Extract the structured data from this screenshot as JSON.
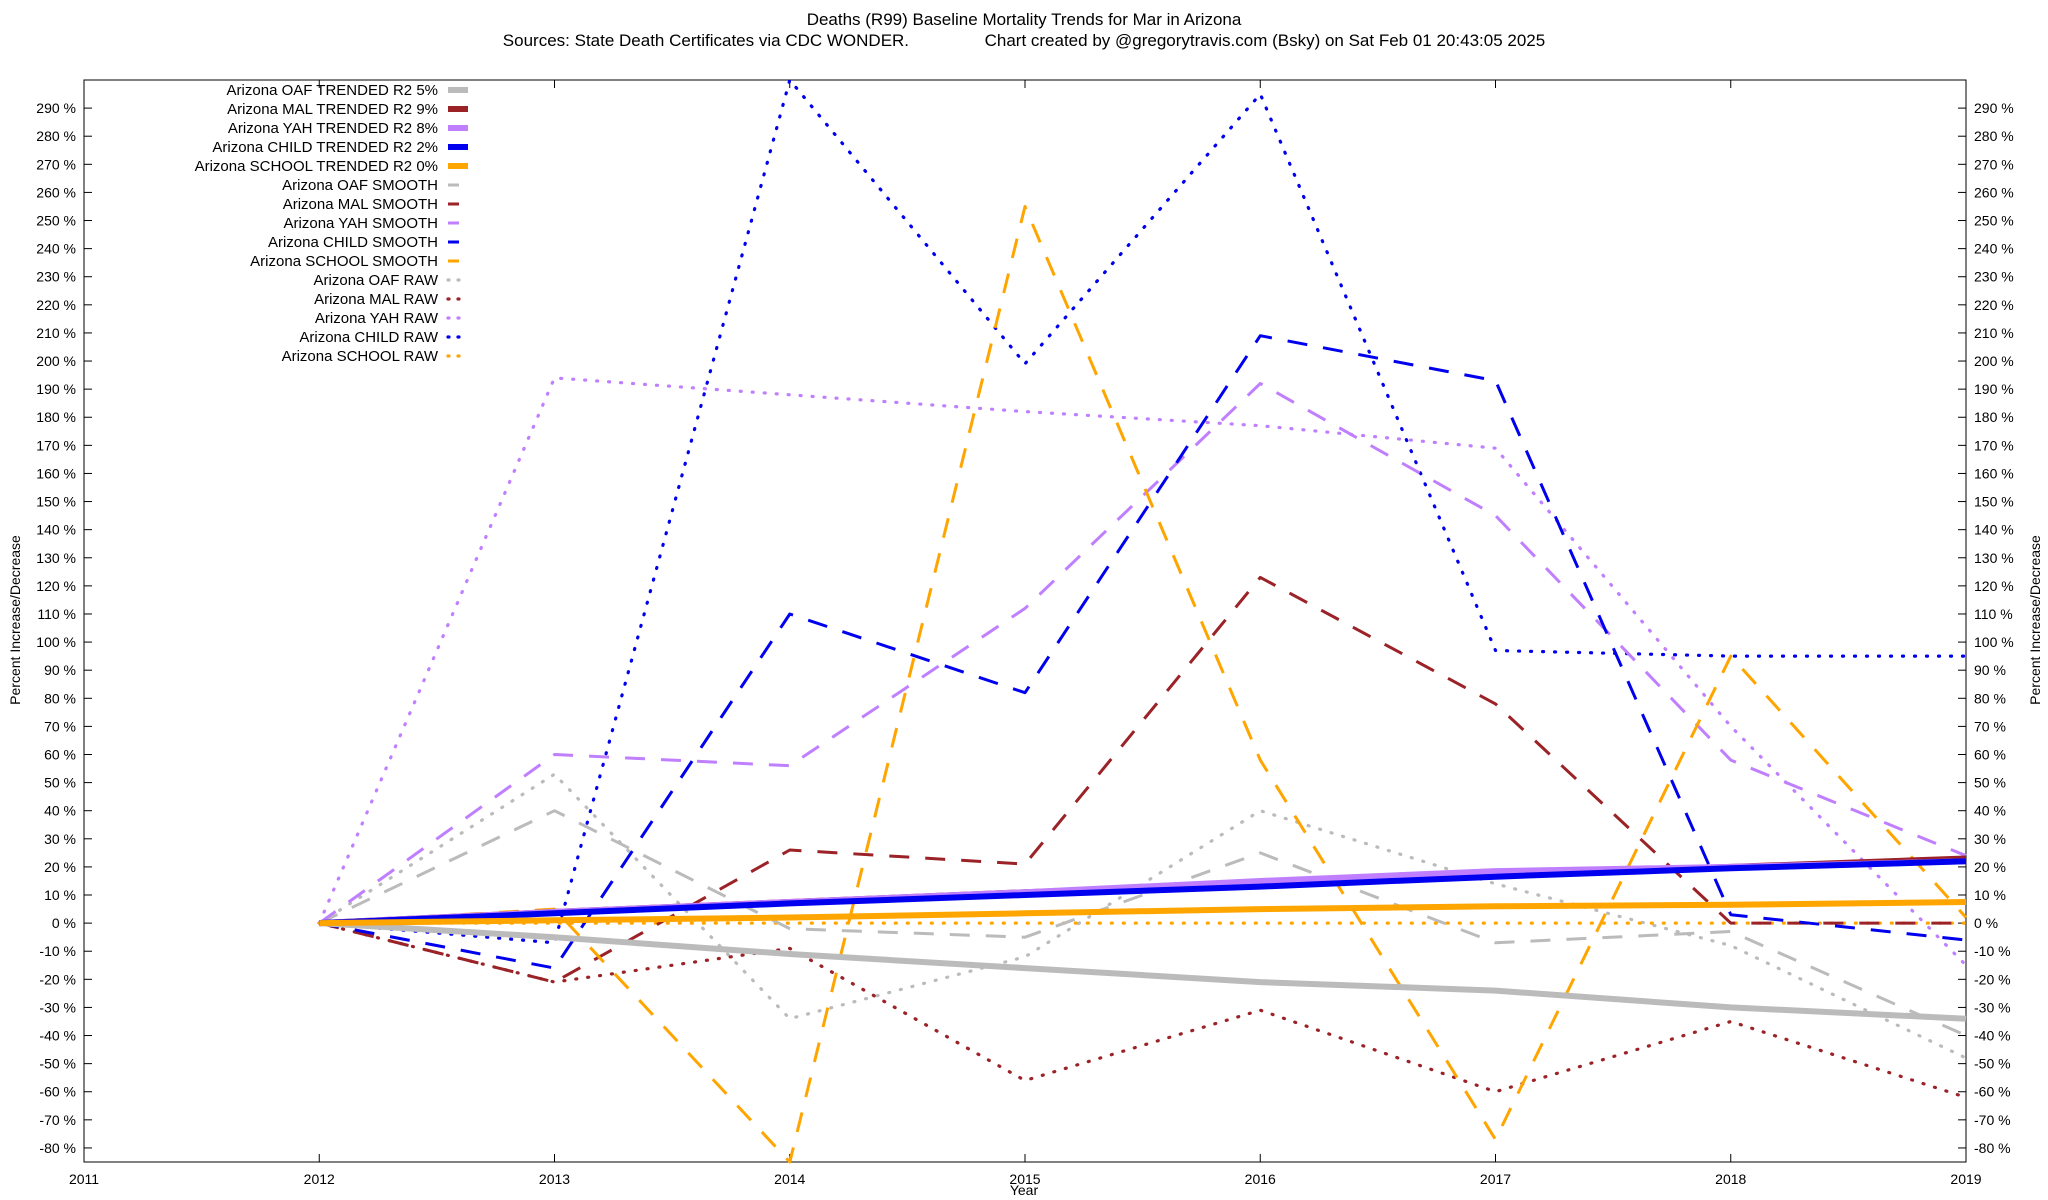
{
  "chart_data": {
    "type": "line",
    "title": "Deaths (R99)  Baseline Mortality Trends for Mar in Arizona",
    "subtitle": "Sources: State Death Certificates via CDC WONDER.                Chart created by @gregorytravis.com (Bsky) on Sat Feb 01 20:43:05 2025",
    "xlabel": "Year",
    "ylabel": "Percent Increase/Decrease",
    "y2label": "Percent Increase/Decrease",
    "xlim": [
      2011,
      2019
    ],
    "ylim": [
      -85,
      300
    ],
    "x_ticks": [
      2011,
      2012,
      2013,
      2014,
      2015,
      2016,
      2017,
      2018,
      2019
    ],
    "y_ticks": [
      -80,
      -70,
      -60,
      -50,
      -40,
      -30,
      -20,
      -10,
      0,
      10,
      20,
      30,
      40,
      50,
      60,
      70,
      80,
      90,
      100,
      110,
      120,
      130,
      140,
      150,
      160,
      170,
      180,
      190,
      200,
      210,
      220,
      230,
      240,
      250,
      260,
      270,
      280,
      290
    ],
    "y_tick_suffix": " %",
    "grid": false,
    "legend_placement": "top-left",
    "x": [
      2012,
      2013,
      2014,
      2015,
      2016,
      2017,
      2018,
      2019
    ],
    "series": [
      {
        "name": "Arizona OAF TRENDED R2  5%",
        "style": "trended",
        "color": "#bbbbbb",
        "values": [
          0,
          -5,
          -11,
          -16,
          -21,
          -24,
          -30,
          -34
        ]
      },
      {
        "name": "Arizona MAL TRENDED R2  9%",
        "style": "trended",
        "color": "#9b2226",
        "values": [
          0,
          4,
          7.5,
          11,
          14,
          17,
          20,
          23
        ]
      },
      {
        "name": "Arizona YAH TRENDED R2  8%",
        "style": "trended",
        "color": "#bf7fff",
        "values": [
          0,
          4,
          7.5,
          11,
          15,
          18.5,
          20,
          22
        ]
      },
      {
        "name": "Arizona CHILD TRENDED R2  2%",
        "style": "trended",
        "color": "#0000ee",
        "values": [
          0,
          3.5,
          7,
          10,
          13,
          16.5,
          19.5,
          22
        ]
      },
      {
        "name": "Arizona SCHOOL TRENDED R2  0%",
        "style": "trended",
        "color": "#ffa500",
        "values": [
          0,
          1,
          2,
          3.5,
          5,
          6,
          6.5,
          7.5
        ]
      },
      {
        "name": "Arizona OAF SMOOTH",
        "style": "smooth",
        "color": "#bbbbbb",
        "values": [
          0,
          40,
          -2,
          -5,
          25,
          -7,
          -3,
          -40
        ]
      },
      {
        "name": "Arizona MAL SMOOTH",
        "style": "smooth",
        "color": "#9b2226",
        "values": [
          0,
          -21,
          26,
          21,
          123,
          78,
          0,
          0
        ]
      },
      {
        "name": "Arizona YAH SMOOTH",
        "style": "smooth",
        "color": "#bf7fff",
        "values": [
          0,
          60,
          56,
          112,
          192,
          145,
          58,
          24
        ]
      },
      {
        "name": "Arizona CHILD SMOOTH",
        "style": "smooth",
        "color": "#0000ee",
        "values": [
          0,
          -16,
          110,
          82,
          209,
          193,
          3,
          -6
        ]
      },
      {
        "name": "Arizona SCHOOL SMOOTH",
        "style": "smooth",
        "color": "#ffa500",
        "values": [
          0,
          5,
          -87,
          255,
          58,
          -77,
          95,
          2
        ]
      },
      {
        "name": "Arizona OAF RAW",
        "style": "raw",
        "color": "#bbbbbb",
        "values": [
          0,
          53,
          -34,
          -12,
          40,
          14,
          -8,
          -48
        ]
      },
      {
        "name": "Arizona MAL RAW",
        "style": "raw",
        "color": "#9b2226",
        "values": [
          0,
          -21,
          -9,
          -56,
          -31,
          -60,
          -35,
          -62
        ]
      },
      {
        "name": "Arizona YAH RAW",
        "style": "raw",
        "color": "#bf7fff",
        "values": [
          0,
          194,
          188,
          182,
          177,
          169,
          70,
          -15
        ]
      },
      {
        "name": "Arizona CHILD RAW",
        "style": "raw",
        "color": "#0000ee",
        "values": [
          0,
          -7,
          300,
          199,
          295,
          97,
          95,
          95
        ]
      },
      {
        "name": "Arizona SCHOOL RAW",
        "style": "raw",
        "color": "#ffa500",
        "values": [
          0,
          0,
          0,
          0,
          0,
          0,
          0,
          0
        ]
      }
    ]
  }
}
